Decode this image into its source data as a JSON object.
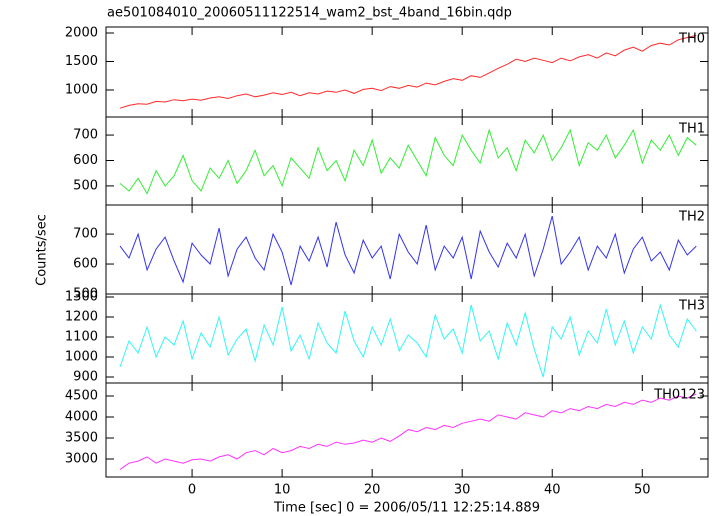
{
  "title": "ae501084010_20060511122514_wam2_bst_4band_16bin.qdp",
  "x_label": "Time [sec] 0 = 2006/05/11 12:25:14.889",
  "y_label": "Counts/sec",
  "chart_data": [
    {
      "type": "line",
      "xlim": [
        -9.56,
        57.3
      ],
      "xticks": [
        0,
        10,
        20,
        30,
        40,
        50
      ],
      "ylim": [
        526,
        2105
      ],
      "yticks": [
        1000,
        1500,
        2000
      ],
      "x": [
        -8,
        -7,
        -6,
        -5,
        -4,
        -3,
        -2,
        -1,
        0,
        1,
        2,
        3,
        4,
        5,
        6,
        7,
        8,
        9,
        10,
        11,
        12,
        13,
        14,
        15,
        16,
        17,
        18,
        19,
        20,
        21,
        22,
        23,
        24,
        25,
        26,
        27,
        28,
        29,
        30,
        31,
        32,
        33,
        34,
        35,
        36,
        37,
        38,
        39,
        40,
        41,
        42,
        43,
        44,
        45,
        46,
        47,
        48,
        49,
        50,
        51,
        52,
        53,
        54,
        55,
        56
      ],
      "series": [
        {
          "name": "TH0",
          "color": "#ff2a2a",
          "values": [
            680,
            730,
            760,
            750,
            800,
            790,
            830,
            810,
            840,
            820,
            860,
            880,
            850,
            900,
            930,
            880,
            910,
            950,
            920,
            960,
            900,
            950,
            930,
            980,
            960,
            1000,
            940,
            1010,
            1030,
            990,
            1060,
            1030,
            1080,
            1050,
            1120,
            1090,
            1150,
            1200,
            1170,
            1250,
            1220,
            1300,
            1380,
            1450,
            1540,
            1500,
            1560,
            1520,
            1480,
            1560,
            1510,
            1580,
            1620,
            1560,
            1650,
            1600,
            1700,
            1750,
            1680,
            1780,
            1820,
            1790,
            1880,
            1920,
            1960
          ]
        }
      ]
    },
    {
      "type": "line",
      "xlim": [
        -9.56,
        57.3
      ],
      "xticks": [
        0,
        10,
        20,
        30,
        40,
        50
      ],
      "ylim": [
        425,
        771
      ],
      "yticks": [
        500,
        600,
        700
      ],
      "x": [
        -8,
        -7,
        -6,
        -5,
        -4,
        -3,
        -2,
        -1,
        0,
        1,
        2,
        3,
        4,
        5,
        6,
        7,
        8,
        9,
        10,
        11,
        12,
        13,
        14,
        15,
        16,
        17,
        18,
        19,
        20,
        21,
        22,
        23,
        24,
        25,
        26,
        27,
        28,
        29,
        30,
        31,
        32,
        33,
        34,
        35,
        36,
        37,
        38,
        39,
        40,
        41,
        42,
        43,
        44,
        45,
        46,
        47,
        48,
        49,
        50,
        51,
        52,
        53,
        54,
        55,
        56
      ],
      "series": [
        {
          "name": "TH1",
          "color": "#33ee33",
          "values": [
            510,
            480,
            530,
            470,
            560,
            500,
            540,
            620,
            520,
            480,
            570,
            530,
            600,
            510,
            560,
            640,
            540,
            580,
            500,
            610,
            570,
            530,
            650,
            560,
            600,
            520,
            640,
            580,
            680,
            550,
            610,
            570,
            660,
            600,
            540,
            690,
            620,
            580,
            700,
            640,
            590,
            720,
            610,
            650,
            560,
            680,
            630,
            700,
            600,
            650,
            720,
            580,
            670,
            640,
            700,
            610,
            660,
            720,
            590,
            680,
            640,
            700,
            620,
            690,
            660
          ]
        }
      ]
    },
    {
      "type": "line",
      "xlim": [
        -9.56,
        57.3
      ],
      "xticks": [
        0,
        10,
        20,
        30,
        40,
        50
      ],
      "ylim": [
        500,
        797
      ],
      "yticks": [
        500,
        600,
        700
      ],
      "x": [
        -8,
        -7,
        -6,
        -5,
        -4,
        -3,
        -2,
        -1,
        0,
        1,
        2,
        3,
        4,
        5,
        6,
        7,
        8,
        9,
        10,
        11,
        12,
        13,
        14,
        15,
        16,
        17,
        18,
        19,
        20,
        21,
        22,
        23,
        24,
        25,
        26,
        27,
        28,
        29,
        30,
        31,
        32,
        33,
        34,
        35,
        36,
        37,
        38,
        39,
        40,
        41,
        42,
        43,
        44,
        45,
        46,
        47,
        48,
        49,
        50,
        51,
        52,
        53,
        54,
        55,
        56
      ],
      "series": [
        {
          "name": "TH2",
          "color": "#3333ee",
          "values": [
            660,
            620,
            700,
            580,
            650,
            690,
            610,
            540,
            670,
            630,
            600,
            720,
            560,
            650,
            690,
            620,
            580,
            700,
            640,
            530,
            660,
            610,
            690,
            590,
            740,
            630,
            570,
            680,
            620,
            660,
            550,
            700,
            640,
            600,
            730,
            580,
            660,
            620,
            690,
            550,
            710,
            640,
            590,
            670,
            620,
            700,
            560,
            650,
            760,
            600,
            640,
            690,
            580,
            660,
            620,
            700,
            570,
            650,
            690,
            610,
            640,
            580,
            680,
            630,
            660
          ]
        }
      ]
    },
    {
      "type": "line",
      "xlim": [
        -9.56,
        57.3
      ],
      "xticks": [
        0,
        10,
        20,
        30,
        40,
        50
      ],
      "ylim": [
        870,
        1315
      ],
      "yticks": [
        900,
        1000,
        1100,
        1200,
        1300
      ],
      "x": [
        -8,
        -7,
        -6,
        -5,
        -4,
        -3,
        -2,
        -1,
        0,
        1,
        2,
        3,
        4,
        5,
        6,
        7,
        8,
        9,
        10,
        11,
        12,
        13,
        14,
        15,
        16,
        17,
        18,
        19,
        20,
        21,
        22,
        23,
        24,
        25,
        26,
        27,
        28,
        29,
        30,
        31,
        32,
        33,
        34,
        35,
        36,
        37,
        38,
        39,
        40,
        41,
        42,
        43,
        44,
        45,
        46,
        47,
        48,
        49,
        50,
        51,
        52,
        53,
        54,
        55,
        56
      ],
      "series": [
        {
          "name": "TH3",
          "color": "#33f5f5",
          "values": [
            950,
            1080,
            1020,
            1150,
            1000,
            1100,
            1060,
            1180,
            990,
            1120,
            1050,
            1200,
            1010,
            1090,
            1140,
            980,
            1160,
            1060,
            1250,
            1030,
            1110,
            990,
            1170,
            1070,
            1020,
            1230,
            1080,
            1000,
            1150,
            1060,
            1190,
            1030,
            1110,
            1070,
            1000,
            1210,
            1090,
            1140,
            1020,
            1260,
            1080,
            1130,
            990,
            1170,
            1060,
            1220,
            1040,
            900,
            1150,
            1090,
            1200,
            1010,
            1130,
            1070,
            1240,
            1060,
            1180,
            1020,
            1150,
            1090,
            1260,
            1110,
            1050,
            1190,
            1130
          ]
        }
      ]
    },
    {
      "type": "line",
      "xlim": [
        -9.56,
        57.3
      ],
      "xticks": [
        0,
        10,
        20,
        30,
        40,
        50
      ],
      "ylim": [
        2571,
        4810
      ],
      "yticks": [
        3000,
        3500,
        4000,
        4500
      ],
      "x": [
        -8,
        -7,
        -6,
        -5,
        -4,
        -3,
        -2,
        -1,
        0,
        1,
        2,
        3,
        4,
        5,
        6,
        7,
        8,
        9,
        10,
        11,
        12,
        13,
        14,
        15,
        16,
        17,
        18,
        19,
        20,
        21,
        22,
        23,
        24,
        25,
        26,
        27,
        28,
        29,
        30,
        31,
        32,
        33,
        34,
        35,
        36,
        37,
        38,
        39,
        40,
        41,
        42,
        43,
        44,
        45,
        46,
        47,
        48,
        49,
        50,
        51,
        52,
        53,
        54,
        55,
        56
      ],
      "series": [
        {
          "name": "TH0123",
          "color": "#ff33ff",
          "values": [
            2750,
            2900,
            2950,
            3050,
            2900,
            3000,
            2950,
            2900,
            2980,
            3000,
            2950,
            3050,
            3100,
            3000,
            3150,
            3200,
            3100,
            3250,
            3150,
            3200,
            3300,
            3250,
            3350,
            3300,
            3400,
            3350,
            3380,
            3450,
            3400,
            3500,
            3420,
            3550,
            3700,
            3650,
            3750,
            3700,
            3800,
            3750,
            3850,
            3900,
            3950,
            3900,
            4050,
            4000,
            3950,
            4100,
            4050,
            4000,
            4150,
            4100,
            4200,
            4150,
            4250,
            4200,
            4300,
            4250,
            4350,
            4300,
            4400,
            4350,
            4450,
            4400,
            4500,
            4450,
            4550
          ]
        }
      ]
    }
  ]
}
